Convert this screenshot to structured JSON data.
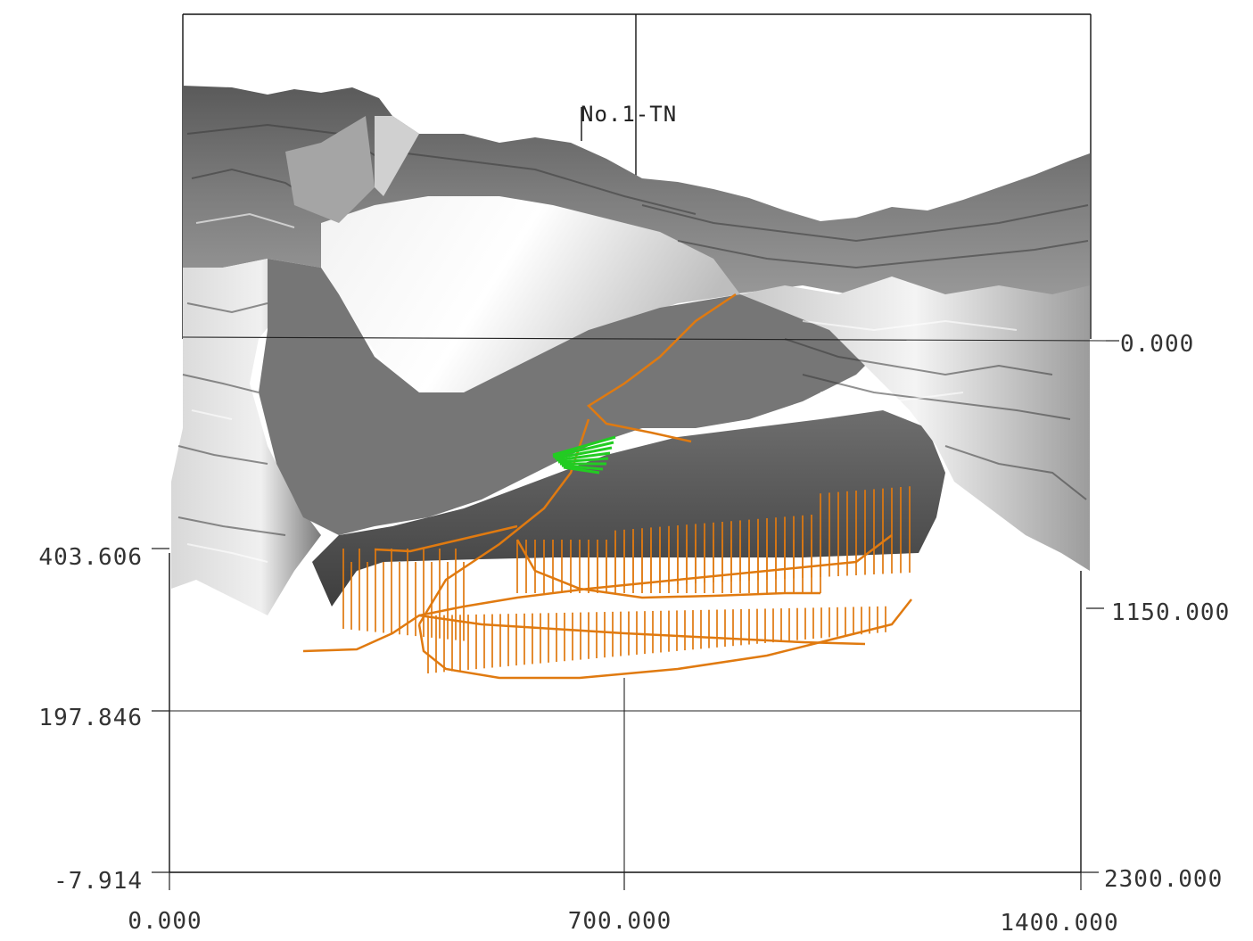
{
  "tunnel_label": "No.1-TN",
  "axes": {
    "left_ticks": [
      "403.606",
      "197.846",
      "-7.914"
    ],
    "right_ticks": [
      "0.000",
      "1150.000",
      "2300.000"
    ],
    "bottom_ticks": [
      "0.000",
      "700.000",
      "1400.000"
    ]
  },
  "colors": {
    "terrain_dark": "#4a4a4a",
    "terrain_mid": "#8c8c8c",
    "terrain_light": "#e6e6e6",
    "tunnel_orange": "#e07a10",
    "tunnel_green": "#22cc22"
  }
}
